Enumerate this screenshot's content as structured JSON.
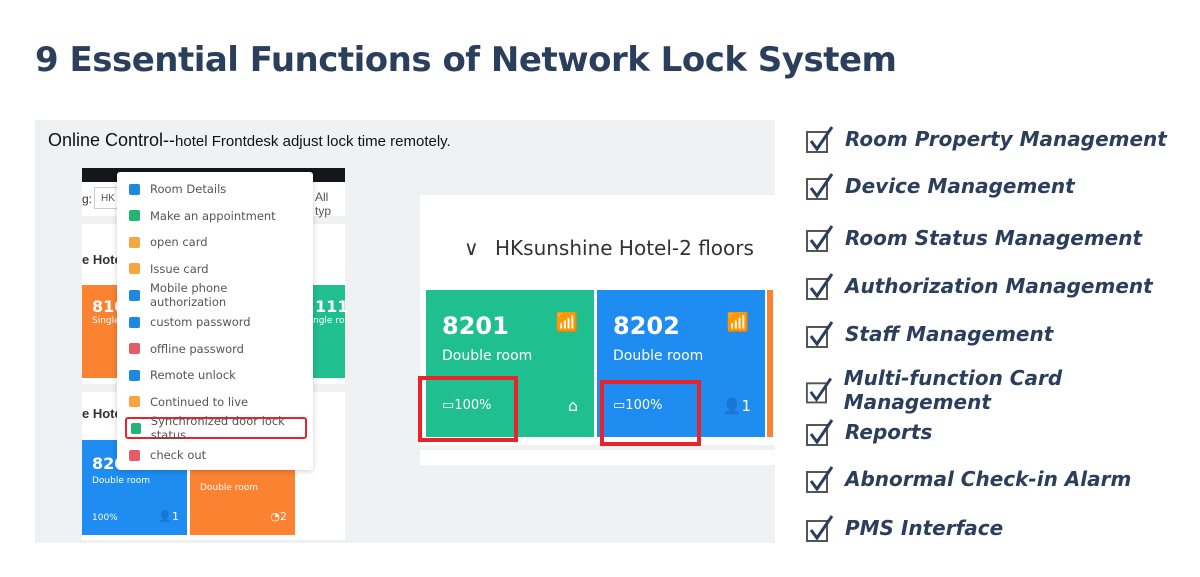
{
  "title": "9 Essential Functions of Network Lock System",
  "screenshot": {
    "caption_main": "Online Control--",
    "caption_rest": "hotel Frontdesk adjust lock time remotely.",
    "filter_label": "g:",
    "filter_value": "HK",
    "filter_type": "All typ",
    "hotel_partial_1": "e Hote",
    "hotel_partial_2": "e Hote",
    "menu": [
      {
        "label": "Room Details",
        "color": "#1e88e5"
      },
      {
        "label": "Make an appointment",
        "color": "#22b573"
      },
      {
        "label": "open card",
        "color": "#f7a541"
      },
      {
        "label": "Issue card",
        "color": "#f7a541"
      },
      {
        "label": "Mobile phone authorization",
        "color": "#1e88e5"
      },
      {
        "label": "custom password",
        "color": "#1e88e5"
      },
      {
        "label": "offline password",
        "color": "#e85a6a"
      },
      {
        "label": "Remote unlock",
        "color": "#1e88e5"
      },
      {
        "label": "Continued to live",
        "color": "#f7a541"
      },
      {
        "label": "Synchronized door lock status",
        "color": "#22b573"
      },
      {
        "label": "check out",
        "color": "#e85a6a"
      }
    ],
    "left_cards": [
      {
        "room": "810",
        "type": "Single"
      },
      {
        "room": "111",
        "type": "ngle ro"
      },
      {
        "room": "820",
        "type": "Double room",
        "battery": "100%",
        "guests": "1"
      },
      {
        "room": "",
        "type": "Double room",
        "count": "2"
      }
    ],
    "floor_header": "HKsunshine Hotel-2 floors",
    "right_cards": [
      {
        "room": "8201",
        "type": "Double room",
        "battery": "100%",
        "color": "#1fbf8f"
      },
      {
        "room": "8202",
        "type": "Double room",
        "battery": "100%",
        "guests": "1",
        "color": "#1e8cf0"
      }
    ]
  },
  "features": [
    "Room Property Management",
    "Device Management",
    "Room Status Management",
    "Authorization Management",
    "Staff Management",
    "Multi-function Card Management",
    "Reports",
    "Abnormal Check-in Alarm",
    "PMS Interface"
  ],
  "colors": {
    "title": "#2b3f5c",
    "highlight": "#e8232a",
    "green": "#1fbf8f",
    "blue": "#1e8cf0",
    "orange": "#fa8231"
  }
}
